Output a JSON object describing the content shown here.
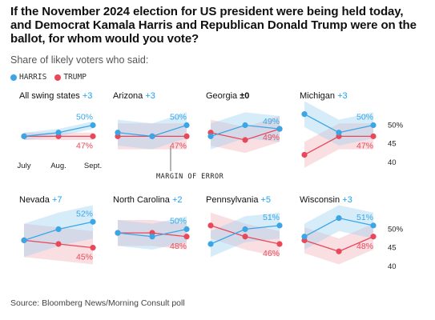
{
  "title": "If the November 2024 election for US president were being held today, and Democrat Kamala Harris and Republican Donald Trump were on the ballot, for whom would you vote?",
  "subtitle": "Share of likely voters who said:",
  "legend": [
    {
      "label": "HARRIS",
      "color": "#3aa6e6"
    },
    {
      "label": "TRUMP",
      "color": "#e8485a"
    }
  ],
  "source": "Source: Bloomberg News/Morning Consult poll",
  "chart_data": {
    "type": "line",
    "x": [
      "July",
      "Aug.",
      "Sept."
    ],
    "ylim": [
      38,
      54
    ],
    "yticks": [
      "50%",
      "45",
      "40"
    ],
    "annotation": "MARGIN OF ERROR",
    "panels": [
      {
        "name": "All swing states",
        "diff": "+3",
        "harris": [
          47,
          48,
          50
        ],
        "trump": [
          47,
          47,
          47
        ],
        "moe": 1,
        "label_h": "50%",
        "label_t": "47%"
      },
      {
        "name": "Arizona",
        "diff": "+3",
        "harris": [
          48,
          47,
          50
        ],
        "trump": [
          47,
          47,
          47
        ],
        "moe": 3.5,
        "label_h": "50%",
        "label_t": "47%"
      },
      {
        "name": "Georgia",
        "diff": "±0",
        "harris": [
          47,
          50,
          49
        ],
        "trump": [
          48,
          46,
          49
        ],
        "moe": 3.5,
        "label_h": "49%",
        "label_t": "49%"
      },
      {
        "name": "Michigan",
        "diff": "+3",
        "harris": [
          53,
          48,
          50
        ],
        "trump": [
          42,
          47,
          47
        ],
        "moe": 3.5,
        "label_h": "50%",
        "label_t": "47%"
      },
      {
        "name": "Nevada",
        "diff": "+7",
        "harris": [
          47,
          50,
          52
        ],
        "trump": [
          47,
          46,
          45
        ],
        "moe": 4.5,
        "label_h": "52%",
        "label_t": "45%"
      },
      {
        "name": "North Carolina",
        "diff": "+2",
        "harris": [
          49,
          48,
          50
        ],
        "trump": [
          49,
          49,
          48
        ],
        "moe": 3.5,
        "label_h": "50%",
        "label_t": "48%"
      },
      {
        "name": "Pennsylvania",
        "diff": "+5",
        "harris": [
          46,
          50,
          51
        ],
        "trump": [
          51,
          48,
          46
        ],
        "moe": 3.5,
        "label_h": "51%",
        "label_t": "46%"
      },
      {
        "name": "Wisconsin",
        "diff": "+3",
        "harris": [
          48,
          53,
          51
        ],
        "trump": [
          47,
          44,
          48
        ],
        "moe": 3.5,
        "label_h": "51%",
        "label_t": "48%"
      }
    ]
  }
}
